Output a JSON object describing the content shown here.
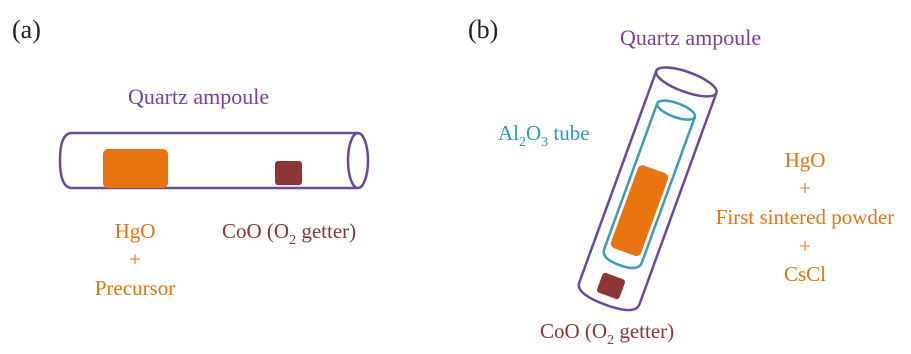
{
  "panel_a": {
    "label": "(a)",
    "ampoule_label": "Quartz ampoule",
    "sample_line1": "HgO",
    "sample_line2": "+",
    "sample_line3": "Precursor",
    "getter_main": "CoO (O",
    "getter_sub": "2",
    "getter_tail": " getter)"
  },
  "panel_b": {
    "label": "(b)",
    "ampoule_label": "Quartz ampoule",
    "tube_main": "Al",
    "tube_sub1": "2",
    "tube_mid": "O",
    "tube_sub2": "3",
    "tube_tail": " tube",
    "sample_line1": "HgO",
    "sample_line2": "+",
    "sample_line3": "First sintered powder",
    "sample_line4": "+",
    "sample_line5": "CsCl",
    "getter_main": "CoO (O",
    "getter_sub": "2",
    "getter_tail": " getter)"
  },
  "colors": {
    "ampoule": "#6a4a9a",
    "tube": "#3d9db0",
    "sample": "#e8740f",
    "getter": "#8c3535",
    "purple_text": "#7b3fa0",
    "orange_text": "#e8740f",
    "brown_text": "#8c3535",
    "teal_text": "#2a9ab5",
    "black_text": "#222222"
  }
}
